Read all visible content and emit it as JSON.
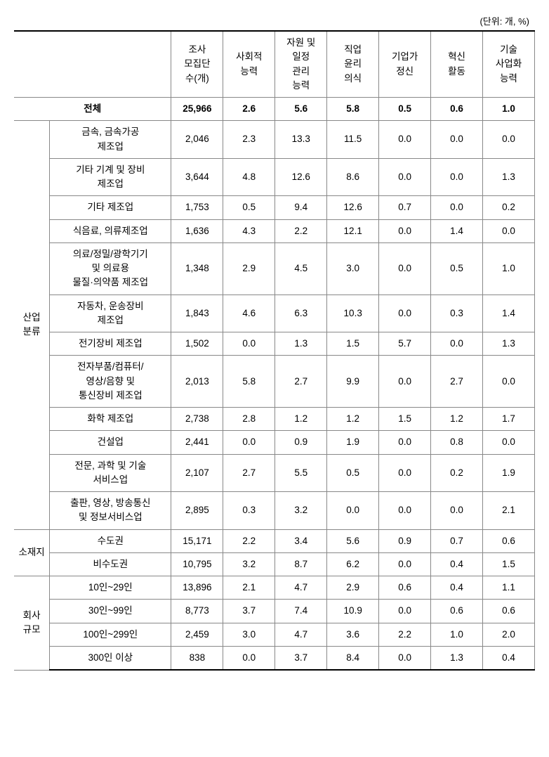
{
  "unit_label": "(단위: 개, %)",
  "headers": {
    "col1": "조사\n모집단\n수(개)",
    "col2": "사회적\n능력",
    "col3": "자원 및\n일정\n관리\n능력",
    "col4": "직업\n윤리\n의식",
    "col5": "기업가\n정신",
    "col6": "혁신\n활동",
    "col7": "기술\n사업화\n능력"
  },
  "total": {
    "label": "전체",
    "c1": "25,966",
    "c2": "2.6",
    "c3": "5.6",
    "c4": "5.8",
    "c5": "0.5",
    "c6": "0.6",
    "c7": "1.0"
  },
  "industry": {
    "header": "산업\n분류",
    "rows": [
      {
        "label": "금속, 금속가공\n제조업",
        "c1": "2,046",
        "c2": "2.3",
        "c3": "13.3",
        "c4": "11.5",
        "c5": "0.0",
        "c6": "0.0",
        "c7": "0.0"
      },
      {
        "label": "기타 기계 및 장비\n제조업",
        "c1": "3,644",
        "c2": "4.8",
        "c3": "12.6",
        "c4": "8.6",
        "c5": "0.0",
        "c6": "0.0",
        "c7": "1.3"
      },
      {
        "label": "기타 제조업",
        "c1": "1,753",
        "c2": "0.5",
        "c3": "9.4",
        "c4": "12.6",
        "c5": "0.7",
        "c6": "0.0",
        "c7": "0.2"
      },
      {
        "label": "식음료, 의류제조업",
        "c1": "1,636",
        "c2": "4.3",
        "c3": "2.2",
        "c4": "12.1",
        "c5": "0.0",
        "c6": "1.4",
        "c7": "0.0"
      },
      {
        "label": "의료/정밀/광학기기\n및 의료용\n물질·의약품 제조업",
        "c1": "1,348",
        "c2": "2.9",
        "c3": "4.5",
        "c4": "3.0",
        "c5": "0.0",
        "c6": "0.5",
        "c7": "1.0"
      },
      {
        "label": "자동차, 운송장비\n제조업",
        "c1": "1,843",
        "c2": "4.6",
        "c3": "6.3",
        "c4": "10.3",
        "c5": "0.0",
        "c6": "0.3",
        "c7": "1.4"
      },
      {
        "label": "전기장비 제조업",
        "c1": "1,502",
        "c2": "0.0",
        "c3": "1.3",
        "c4": "1.5",
        "c5": "5.7",
        "c6": "0.0",
        "c7": "1.3"
      },
      {
        "label": "전자부품/컴퓨터/\n영상/음향 및\n통신장비 제조업",
        "c1": "2,013",
        "c2": "5.8",
        "c3": "2.7",
        "c4": "9.9",
        "c5": "0.0",
        "c6": "2.7",
        "c7": "0.0"
      },
      {
        "label": "화학 제조업",
        "c1": "2,738",
        "c2": "2.8",
        "c3": "1.2",
        "c4": "1.2",
        "c5": "1.5",
        "c6": "1.2",
        "c7": "1.7"
      },
      {
        "label": "건설업",
        "c1": "2,441",
        "c2": "0.0",
        "c3": "0.9",
        "c4": "1.9",
        "c5": "0.0",
        "c6": "0.8",
        "c7": "0.0"
      },
      {
        "label": "전문, 과학 및 기술\n서비스업",
        "c1": "2,107",
        "c2": "2.7",
        "c3": "5.5",
        "c4": "0.5",
        "c5": "0.0",
        "c6": "0.2",
        "c7": "1.9"
      },
      {
        "label": "출판, 영상, 방송통신\n및 정보서비스업",
        "c1": "2,895",
        "c2": "0.3",
        "c3": "3.2",
        "c4": "0.0",
        "c5": "0.0",
        "c6": "0.0",
        "c7": "2.1"
      }
    ]
  },
  "location": {
    "header": "소재지",
    "rows": [
      {
        "label": "수도권",
        "c1": "15,171",
        "c2": "2.2",
        "c3": "3.4",
        "c4": "5.6",
        "c5": "0.9",
        "c6": "0.7",
        "c7": "0.6"
      },
      {
        "label": "비수도권",
        "c1": "10,795",
        "c2": "3.2",
        "c3": "8.7",
        "c4": "6.2",
        "c5": "0.0",
        "c6": "0.4",
        "c7": "1.5"
      }
    ]
  },
  "size": {
    "header": "회사\n규모",
    "rows": [
      {
        "label": "10인~29인",
        "c1": "13,896",
        "c2": "2.1",
        "c3": "4.7",
        "c4": "2.9",
        "c5": "0.6",
        "c6": "0.4",
        "c7": "1.1"
      },
      {
        "label": "30인~99인",
        "c1": "8,773",
        "c2": "3.7",
        "c3": "7.4",
        "c4": "10.9",
        "c5": "0.0",
        "c6": "0.6",
        "c7": "0.6"
      },
      {
        "label": "100인~299인",
        "c1": "2,459",
        "c2": "3.0",
        "c3": "4.7",
        "c4": "3.6",
        "c5": "2.2",
        "c6": "1.0",
        "c7": "2.0"
      },
      {
        "label": "300인 이상",
        "c1": "838",
        "c2": "0.0",
        "c3": "3.7",
        "c4": "8.4",
        "c5": "0.0",
        "c6": "1.3",
        "c7": "0.4"
      }
    ]
  }
}
